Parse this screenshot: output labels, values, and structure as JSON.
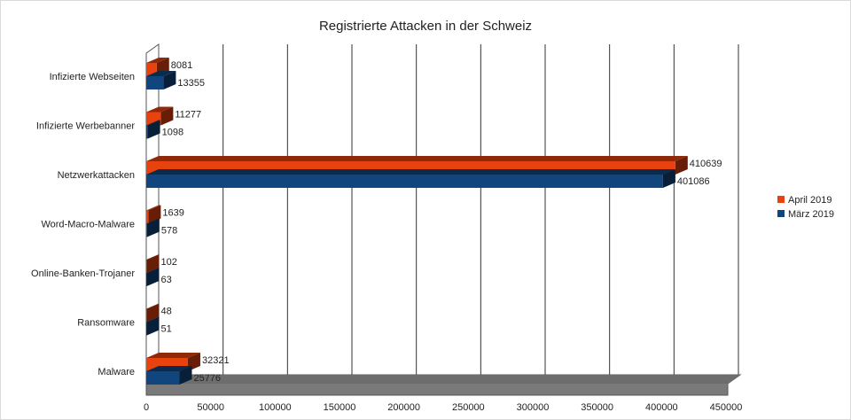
{
  "chart_data": {
    "type": "bar",
    "orientation": "horizontal",
    "style": "3d",
    "title": "Registrierte Attacken in der Schweiz",
    "categories": [
      "Infizierte Webseiten",
      "Infizierte Werbebanner",
      "Netzwerkattacken",
      "Word-Macro-Malware",
      "Online-Banken-Trojaner",
      "Ransomware",
      "Malware"
    ],
    "series": [
      {
        "name": "April 2019",
        "color": "#e8420e",
        "values": [
          8081,
          11277,
          410639,
          1639,
          102,
          48,
          32321
        ]
      },
      {
        "name": "März 2019",
        "color": "#10457e",
        "values": [
          13355,
          1098,
          401086,
          578,
          63,
          51,
          25776
        ]
      }
    ],
    "xlim": [
      0,
      450000
    ],
    "xticks": [
      "0",
      "50000",
      "100000",
      "150000",
      "200000",
      "250000",
      "300000",
      "350000",
      "400000",
      "450000"
    ],
    "grid": true,
    "legend_position": "right"
  }
}
